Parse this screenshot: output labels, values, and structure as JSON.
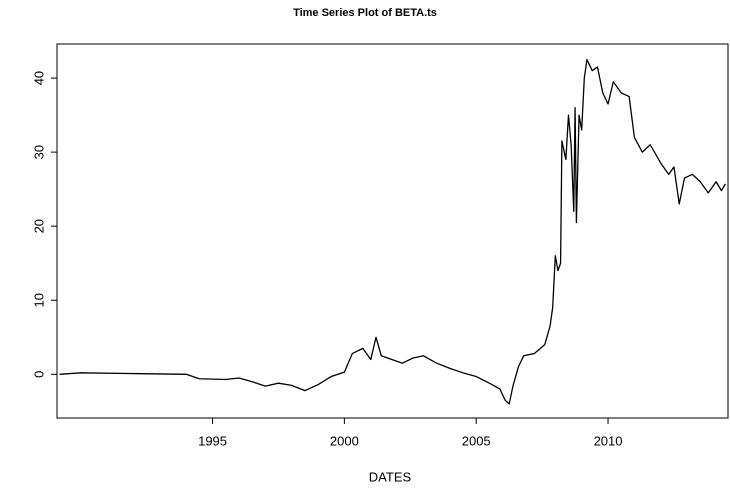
{
  "chart_data": {
    "type": "line",
    "title": "Time Series Plot of BETA.ts",
    "x_label": "DATES",
    "x": [
      1989.2,
      1990,
      1992,
      1994,
      1994.5,
      1995.5,
      1996,
      1996.5,
      1997,
      1997.5,
      1998,
      1998.5,
      1999,
      1999.5,
      2000,
      2000.3,
      2000.7,
      2001,
      2001.2,
      2001.4,
      2001.8,
      2002.2,
      2002.6,
      2003,
      2003.5,
      2004,
      2004.5,
      2005,
      2005.5,
      2005.9,
      2006.1,
      2006.25,
      2006.4,
      2006.6,
      2006.8,
      2007.2,
      2007.6,
      2007.8,
      2007.9,
      2008.0,
      2008.1,
      2008.2,
      2008.25,
      2008.4,
      2008.5,
      2008.6,
      2008.7,
      2008.75,
      2008.8,
      2008.9,
      2009.0,
      2009.1,
      2009.2,
      2009.4,
      2009.6,
      2009.8,
      2010.0,
      2010.2,
      2010.5,
      2010.8,
      2011.0,
      2011.3,
      2011.6,
      2012.0,
      2012.3,
      2012.5,
      2012.7,
      2012.9,
      2013.2,
      2013.5,
      2013.8,
      2014.1,
      2014.3,
      2014.45
    ],
    "values": [
      0.0,
      0.2,
      0.1,
      0.0,
      -0.6,
      -0.7,
      -0.5,
      -1.0,
      -1.6,
      -1.2,
      -1.5,
      -2.2,
      -1.4,
      -0.3,
      0.3,
      2.8,
      3.5,
      2.0,
      5.0,
      2.5,
      2.0,
      1.5,
      2.2,
      2.5,
      1.5,
      0.8,
      0.2,
      -0.3,
      -1.2,
      -2.0,
      -3.5,
      -4.0,
      -1.5,
      1.0,
      2.5,
      2.8,
      4.0,
      6.5,
      9.0,
      16.0,
      14.0,
      15.0,
      31.5,
      29.0,
      35.0,
      31.0,
      22.0,
      36.0,
      20.5,
      35.0,
      33.0,
      40.0,
      42.5,
      41.0,
      41.5,
      38.0,
      36.5,
      39.5,
      38.0,
      37.5,
      32.0,
      30.0,
      31.0,
      28.5,
      27.0,
      28.0,
      23.0,
      26.5,
      27.0,
      26.0,
      24.5,
      26.0,
      24.8,
      25.7
    ],
    "color": "#000000",
    "xlim": [
      1989.1,
      2014.55
    ],
    "xticks": [
      1995,
      2000,
      2005,
      2010
    ],
    "ylim": [
      -5.9,
      44.6
    ],
    "yticks": [
      0,
      10,
      20,
      30,
      40
    ]
  }
}
